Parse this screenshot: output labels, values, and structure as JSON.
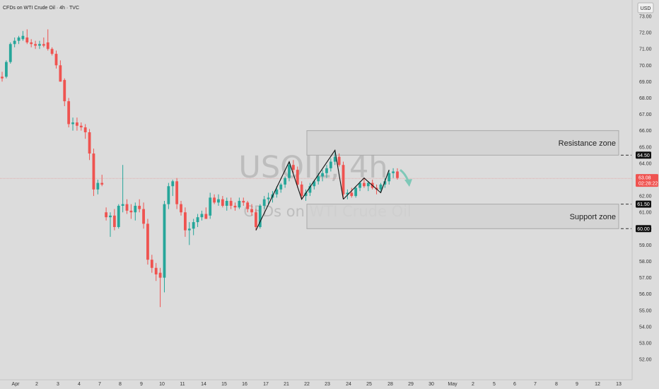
{
  "header": {
    "symbol_title": "CFDs on WTI Crude Oil · 4h · TVC",
    "currency": "USD"
  },
  "watermark": {
    "symbol": "USOIL, 4h",
    "name": "CFDs on WTI Crude Oil"
  },
  "colors": {
    "background": "#dcdcdc",
    "up": "#26a69a",
    "down": "#ef5350",
    "zone_fill": "#d2d2d2",
    "zone_stroke": "#a8a8a8",
    "price_tag": "#ef5350",
    "arrow": "#7fc8b8"
  },
  "chart_data": {
    "type": "candlestick",
    "title": "CFDs on WTI Crude Oil · 4h · TVC",
    "ylabel": "USD",
    "ylim": [
      51.5,
      73.5
    ],
    "y_ticks": [
      "52.00",
      "53.00",
      "54.00",
      "55.00",
      "56.00",
      "57.00",
      "58.00",
      "59.00",
      "60.00",
      "61.00",
      "62.00",
      "63.00",
      "64.00",
      "65.00",
      "66.00",
      "67.00",
      "68.00",
      "69.00",
      "70.00",
      "71.00",
      "72.00",
      "73.00"
    ],
    "x_ticks": [
      "Apr",
      "2",
      "3",
      "4",
      "7",
      "8",
      "9",
      "10",
      "11",
      "14",
      "15",
      "16",
      "17",
      "21",
      "22",
      "23",
      "24",
      "25",
      "28",
      "29",
      "30",
      "May",
      "2",
      "5",
      "6",
      "7",
      "8",
      "9",
      "12",
      "13"
    ],
    "grid": false,
    "last_price": "63.08",
    "countdown": "02:28:22",
    "levels": [
      {
        "label": "64.50",
        "value": 64.5
      },
      {
        "label": "61.50",
        "value": 61.5
      },
      {
        "label": "60.00",
        "value": 60.0
      }
    ],
    "zones": [
      {
        "label": "Resistance zone",
        "low": 64.5,
        "high": 66.0,
        "x_start": 14,
        "x_end": 29
      },
      {
        "label": "Support zone",
        "low": 60.0,
        "high": 61.5,
        "x_start": 14,
        "x_end": 29
      }
    ],
    "candles_ohlc": [
      [
        69.3,
        69.6,
        69.0,
        69.2
      ],
      [
        69.3,
        70.3,
        69.2,
        70.2
      ],
      [
        70.2,
        71.4,
        70.1,
        71.3
      ],
      [
        71.3,
        71.7,
        71.1,
        71.5
      ],
      [
        71.5,
        71.8,
        71.3,
        71.7
      ],
      [
        71.6,
        72.1,
        71.5,
        71.8
      ],
      [
        71.7,
        72.2,
        71.3,
        71.4
      ],
      [
        71.4,
        71.6,
        71.1,
        71.3
      ],
      [
        71.3,
        71.5,
        71.0,
        71.2
      ],
      [
        71.2,
        71.5,
        71.0,
        71.3
      ],
      [
        71.3,
        71.7,
        71.1,
        71.2
      ],
      [
        71.4,
        72.2,
        70.9,
        71.0
      ],
      [
        71.0,
        71.1,
        70.6,
        70.7
      ],
      [
        70.7,
        70.9,
        69.8,
        70.0
      ],
      [
        70.0,
        70.3,
        69.0,
        69.0
      ],
      [
        69.1,
        69.2,
        67.5,
        67.8
      ],
      [
        67.8,
        68.0,
        66.2,
        66.4
      ],
      [
        66.4,
        66.8,
        66.0,
        66.5
      ],
      [
        66.5,
        66.8,
        66.0,
        66.3
      ],
      [
        66.3,
        66.5,
        66.0,
        66.2
      ],
      [
        66.2,
        66.4,
        65.5,
        65.9
      ],
      [
        65.9,
        66.1,
        64.2,
        64.6
      ],
      [
        64.6,
        64.9,
        62.0,
        62.4
      ],
      [
        62.4,
        63.0,
        62.1,
        62.8
      ],
      [
        62.8,
        63.3,
        62.6,
        62.7
      ],
      [
        61.0,
        61.3,
        60.5,
        60.7
      ],
      [
        60.7,
        61.0,
        59.5,
        60.8
      ],
      [
        60.8,
        61.2,
        59.9,
        60.1
      ],
      [
        60.1,
        61.5,
        60.0,
        61.4
      ],
      [
        61.4,
        63.9,
        61.0,
        61.5
      ],
      [
        61.5,
        61.8,
        60.9,
        61.1
      ],
      [
        61.1,
        61.5,
        60.6,
        61.0
      ],
      [
        61.0,
        61.6,
        60.5,
        61.4
      ],
      [
        61.4,
        61.8,
        61.0,
        61.2
      ],
      [
        61.2,
        61.6,
        60.0,
        60.3
      ],
      [
        60.3,
        60.6,
        57.8,
        58.1
      ],
      [
        58.1,
        58.4,
        57.3,
        57.6
      ],
      [
        57.6,
        57.9,
        56.8,
        57.2
      ],
      [
        57.3,
        57.6,
        55.2,
        57.0
      ],
      [
        57.0,
        61.7,
        56.1,
        61.5
      ],
      [
        61.5,
        62.8,
        61.2,
        62.6
      ],
      [
        62.6,
        63.0,
        62.0,
        62.9
      ],
      [
        62.9,
        63.1,
        61.2,
        61.5
      ],
      [
        61.5,
        61.7,
        60.8,
        61.0
      ],
      [
        61.0,
        61.3,
        59.5,
        59.9
      ],
      [
        59.9,
        60.4,
        59.0,
        60.0
      ],
      [
        60.0,
        60.6,
        59.6,
        60.4
      ],
      [
        60.4,
        60.9,
        60.1,
        60.7
      ],
      [
        60.7,
        61.1,
        60.5,
        60.9
      ],
      [
        60.9,
        61.3,
        60.6,
        60.6
      ],
      [
        60.8,
        62.2,
        60.6,
        61.9
      ],
      [
        61.9,
        62.1,
        61.5,
        61.6
      ],
      [
        61.6,
        62.1,
        61.4,
        61.8
      ],
      [
        61.8,
        62.0,
        61.3,
        61.4
      ],
      [
        61.4,
        61.9,
        61.1,
        61.7
      ],
      [
        61.7,
        61.9,
        61.2,
        61.4
      ],
      [
        61.4,
        61.6,
        61.1,
        61.3
      ],
      [
        61.3,
        61.9,
        61.2,
        61.7
      ],
      [
        61.7,
        61.9,
        61.4,
        61.6
      ],
      [
        61.6,
        61.7,
        61.0,
        61.2
      ],
      [
        61.2,
        61.5,
        60.8,
        61.0
      ],
      [
        61.0,
        61.2,
        59.9,
        60.1
      ],
      [
        60.1,
        61.5,
        60.0,
        61.4
      ],
      [
        61.4,
        62.0,
        61.2,
        61.8
      ],
      [
        61.8,
        62.2,
        61.5,
        61.9
      ],
      [
        61.9,
        62.3,
        61.6,
        62.1
      ],
      [
        62.1,
        62.6,
        61.9,
        62.4
      ],
      [
        62.4,
        62.8,
        62.2,
        62.7
      ],
      [
        62.7,
        63.2,
        62.5,
        63.1
      ],
      [
        63.1,
        64.1,
        62.9,
        63.9
      ],
      [
        63.9,
        64.2,
        63.4,
        63.6
      ],
      [
        63.6,
        63.8,
        62.5,
        62.7
      ],
      [
        62.7,
        62.9,
        61.8,
        62.0
      ],
      [
        62.0,
        62.4,
        61.7,
        62.2
      ],
      [
        62.2,
        62.8,
        62.0,
        62.6
      ],
      [
        62.6,
        63.0,
        62.4,
        62.9
      ],
      [
        62.9,
        63.4,
        62.7,
        63.2
      ],
      [
        63.2,
        63.6,
        62.9,
        63.4
      ],
      [
        63.4,
        63.9,
        63.1,
        63.7
      ],
      [
        63.7,
        64.3,
        63.5,
        64.1
      ],
      [
        64.1,
        64.8,
        63.9,
        64.4
      ],
      [
        64.4,
        64.6,
        63.8,
        63.9
      ],
      [
        63.9,
        64.1,
        61.8,
        62.1
      ],
      [
        62.1,
        62.4,
        61.8,
        62.2
      ],
      [
        62.2,
        62.5,
        61.9,
        62.0
      ],
      [
        62.0,
        62.6,
        61.9,
        62.5
      ],
      [
        62.5,
        62.9,
        62.3,
        62.8
      ],
      [
        62.8,
        63.1,
        62.5,
        62.6
      ],
      [
        62.6,
        62.9,
        62.3,
        62.8
      ],
      [
        62.8,
        63.0,
        62.4,
        62.5
      ],
      [
        62.5,
        62.7,
        62.1,
        62.4
      ],
      [
        62.4,
        62.8,
        62.2,
        62.7
      ],
      [
        62.7,
        63.1,
        62.5,
        62.9
      ],
      [
        62.9,
        63.6,
        62.7,
        63.4
      ],
      [
        63.4,
        63.7,
        63.1,
        63.5
      ],
      [
        63.5,
        63.7,
        63.0,
        63.1
      ]
    ]
  }
}
